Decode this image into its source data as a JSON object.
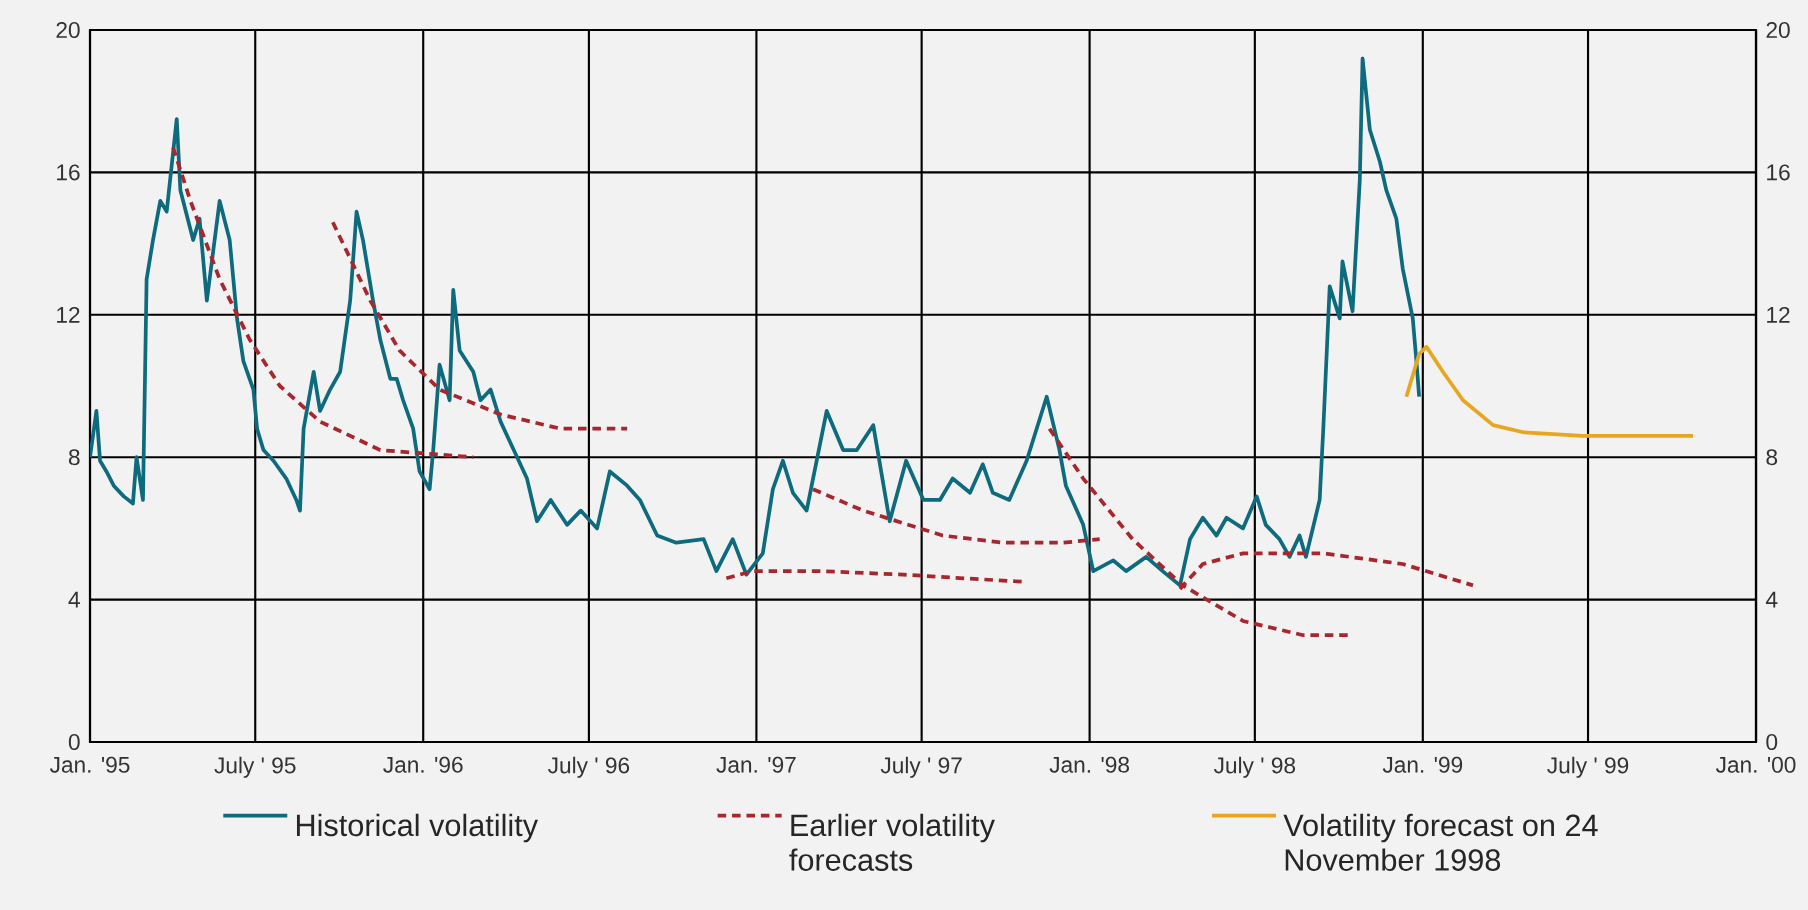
{
  "chart_data": {
    "type": "line",
    "xlim": [
      "1995-01",
      "2000-01"
    ],
    "xticks": [
      {
        "value": "1995-01",
        "label": "Jan. '95"
      },
      {
        "value": "1995-07",
        "label": "July ' 95"
      },
      {
        "value": "1996-01",
        "label": "Jan. '96"
      },
      {
        "value": "1996-07",
        "label": "July ' 96"
      },
      {
        "value": "1997-01",
        "label": "Jan. '97"
      },
      {
        "value": "1997-07",
        "label": "July ' 97"
      },
      {
        "value": "1998-01",
        "label": "Jan. '98"
      },
      {
        "value": "1998-07",
        "label": "July ' 98"
      },
      {
        "value": "1999-01",
        "label": "Jan. '99"
      },
      {
        "value": "1999-07",
        "label": "July ' 99"
      },
      {
        "value": "2000-01",
        "label": "Jan. '00"
      }
    ],
    "ylim": [
      0,
      20
    ],
    "yticks": [
      0,
      4,
      8,
      12,
      16,
      20
    ],
    "y2lim": [
      0,
      20
    ],
    "y2ticks": [
      0,
      4,
      8,
      12,
      16,
      20
    ],
    "grid": true,
    "legend": "bottom",
    "marker": "none",
    "series": [
      {
        "name": "Historical volatility",
        "color": "#0e6b7e",
        "line_style": "solid",
        "x": [
          "1995-01-01",
          "1995-01-08",
          "1995-01-12",
          "1995-01-19",
          "1995-01-27",
          "1995-02-07",
          "1995-02-17",
          "1995-02-21",
          "1995-02-28",
          "1995-03-04",
          "1995-03-11",
          "1995-03-19",
          "1995-03-26",
          "1995-04-06",
          "1995-04-10",
          "1995-04-24",
          "1995-05-01",
          "1995-05-09",
          "1995-05-23",
          "1995-06-03",
          "1995-06-11",
          "1995-06-18",
          "1995-06-29",
          "1995-07-03",
          "1995-07-10",
          "1995-07-21",
          "1995-08-04",
          "1995-08-15",
          "1995-08-19",
          "1995-08-23",
          "1995-09-03",
          "1995-09-10",
          "1995-09-21",
          "1995-10-02",
          "1995-10-13",
          "1995-10-20",
          "1995-10-27",
          "1995-11-07",
          "1995-11-15",
          "1995-11-26",
          "1995-12-03",
          "1995-12-10",
          "1995-12-21",
          "1995-12-28",
          "1996-01-08",
          "1996-01-12",
          "1996-01-19",
          "1996-01-30",
          "1996-02-03",
          "1996-02-10",
          "1996-02-25",
          "1996-03-04",
          "1996-03-15",
          "1996-03-26",
          "1996-04-24",
          "1996-05-05",
          "1996-05-20",
          "1996-06-07",
          "1996-06-22",
          "1996-07-10",
          "1996-07-24",
          "1996-08-12",
          "1996-08-26",
          "1996-09-14",
          "1996-10-05",
          "1996-11-04",
          "1996-11-18",
          "1996-12-06",
          "1996-12-21",
          "1997-01-08",
          "1997-01-19",
          "1997-01-30",
          "1997-02-10",
          "1997-02-25",
          "1997-03-19",
          "1997-04-06",
          "1997-04-21",
          "1997-05-09",
          "1997-05-27",
          "1997-06-14",
          "1997-07-03",
          "1997-07-21",
          "1997-08-04",
          "1997-08-23",
          "1997-09-06",
          "1997-09-17",
          "1997-10-05",
          "1997-10-24",
          "1997-11-15",
          "1997-11-29",
          "1997-12-06",
          "1997-12-25",
          "1998-01-05",
          "1998-01-27",
          "1998-02-10",
          "1998-03-04",
          "1998-03-22",
          "1998-04-10",
          "1998-04-21",
          "1998-05-05",
          "1998-05-20",
          "1998-05-31",
          "1998-06-18",
          "1998-07-03",
          "1998-07-13",
          "1998-07-28",
          "1998-08-08",
          "1998-08-19",
          "1998-08-26",
          "1998-09-10",
          "1998-09-14",
          "1998-09-21",
          "1998-10-02",
          "1998-10-05",
          "1998-10-16",
          "1998-10-24",
          "1998-10-27",
          "1998-11-04",
          "1998-11-15",
          "1998-11-22",
          "1998-12-03",
          "1998-12-10",
          "1998-12-21",
          "1998-12-25",
          "1998-12-28"
        ],
        "values": [
          8.0,
          9.3,
          7.9,
          7.6,
          7.2,
          6.9,
          6.7,
          8.0,
          6.8,
          13.0,
          14.1,
          15.2,
          14.9,
          17.5,
          15.5,
          14.1,
          14.7,
          12.4,
          15.2,
          14.1,
          11.9,
          10.7,
          9.9,
          8.8,
          8.2,
          7.9,
          7.4,
          6.8,
          6.5,
          8.8,
          10.4,
          9.3,
          9.9,
          10.4,
          12.4,
          14.9,
          14.1,
          12.4,
          11.3,
          10.2,
          10.2,
          9.6,
          8.8,
          7.6,
          7.1,
          8.2,
          10.6,
          9.6,
          12.7,
          11.0,
          10.4,
          9.6,
          9.9,
          9.0,
          7.4,
          6.2,
          6.8,
          6.1,
          6.5,
          6.0,
          7.6,
          7.2,
          6.8,
          5.8,
          5.6,
          5.7,
          4.8,
          5.7,
          4.7,
          5.3,
          7.1,
          7.9,
          7.0,
          6.5,
          9.3,
          8.2,
          8.2,
          8.9,
          6.2,
          7.9,
          6.8,
          6.8,
          7.4,
          7.0,
          7.8,
          7.0,
          6.8,
          7.9,
          9.7,
          8.2,
          7.2,
          6.1,
          4.8,
          5.1,
          4.8,
          5.2,
          4.8,
          4.4,
          5.7,
          6.3,
          5.8,
          6.3,
          6.0,
          6.9,
          6.1,
          5.7,
          5.2,
          5.8,
          5.2,
          6.8,
          8.8,
          12.8,
          11.9,
          13.5,
          12.1,
          15.8,
          19.2,
          17.2,
          16.3,
          15.5,
          14.7,
          13.3,
          11.9,
          10.7,
          9.7
        ]
      },
      {
        "name": "Earlier volatility forecasts",
        "color": "#a8272e",
        "line_style": "dashed",
        "x": [
          "1995-04-02",
          "1995-04-21",
          "1995-05-23",
          "1995-06-25",
          "1995-07-28",
          "1995-09-10",
          "1995-11-15",
          "1996-02-25"
        ],
        "values": [
          16.7,
          15.2,
          13.0,
          11.3,
          10.0,
          9.0,
          8.2,
          8.0
        ]
      },
      {
        "color": "#a8272e",
        "line_style": "dashed",
        "x": [
          "1995-09-24",
          "1995-11-04",
          "1995-12-06",
          "1996-01-19",
          "1996-03-26",
          "1996-05-31",
          "1996-08-12"
        ],
        "values": [
          14.6,
          12.4,
          11.0,
          9.9,
          9.2,
          8.8,
          8.8
        ]
      },
      {
        "color": "#a8272e",
        "line_style": "dashed",
        "x": [
          "1996-11-29",
          "1996-12-28",
          "1997-03-15",
          "1997-06-11",
          "1997-10-20"
        ],
        "values": [
          4.6,
          4.8,
          4.8,
          4.7,
          4.5
        ]
      },
      {
        "color": "#a8272e",
        "line_style": "dashed",
        "x": [
          "1997-03-04",
          "1997-04-28",
          "1997-07-24",
          "1997-09-28",
          "1997-12-03",
          "1998-01-12"
        ],
        "values": [
          7.1,
          6.5,
          5.8,
          5.6,
          5.6,
          5.7
        ]
      },
      {
        "color": "#a8272e",
        "line_style": "dashed",
        "x": [
          "1997-11-18",
          "1997-12-25",
          "1998-02-17",
          "1998-04-13",
          "1998-06-18",
          "1998-08-23",
          "1998-10-13"
        ],
        "values": [
          8.8,
          7.4,
          5.7,
          4.4,
          3.4,
          3.0,
          3.0
        ]
      },
      {
        "color": "#a8272e",
        "line_style": "dashed",
        "x": [
          "1998-04-10",
          "1998-05-05",
          "1998-06-18",
          "1998-09-14",
          "1998-12-10",
          "1999-02-25"
        ],
        "values": [
          4.3,
          5.0,
          5.3,
          5.3,
          5.0,
          4.4
        ]
      },
      {
        "name": "Volatility forecast on 24 November 1998",
        "color": "#e8a520",
        "line_style": "solid",
        "x": [
          "1998-12-14",
          "1998-12-28",
          "1999-01-05",
          "1999-01-23",
          "1999-02-14",
          "1999-03-19",
          "1999-04-21",
          "1999-06-25",
          "1999-10-24"
        ],
        "values": [
          9.7,
          10.9,
          11.1,
          10.4,
          9.6,
          8.9,
          8.7,
          8.6,
          8.6
        ]
      }
    ]
  }
}
